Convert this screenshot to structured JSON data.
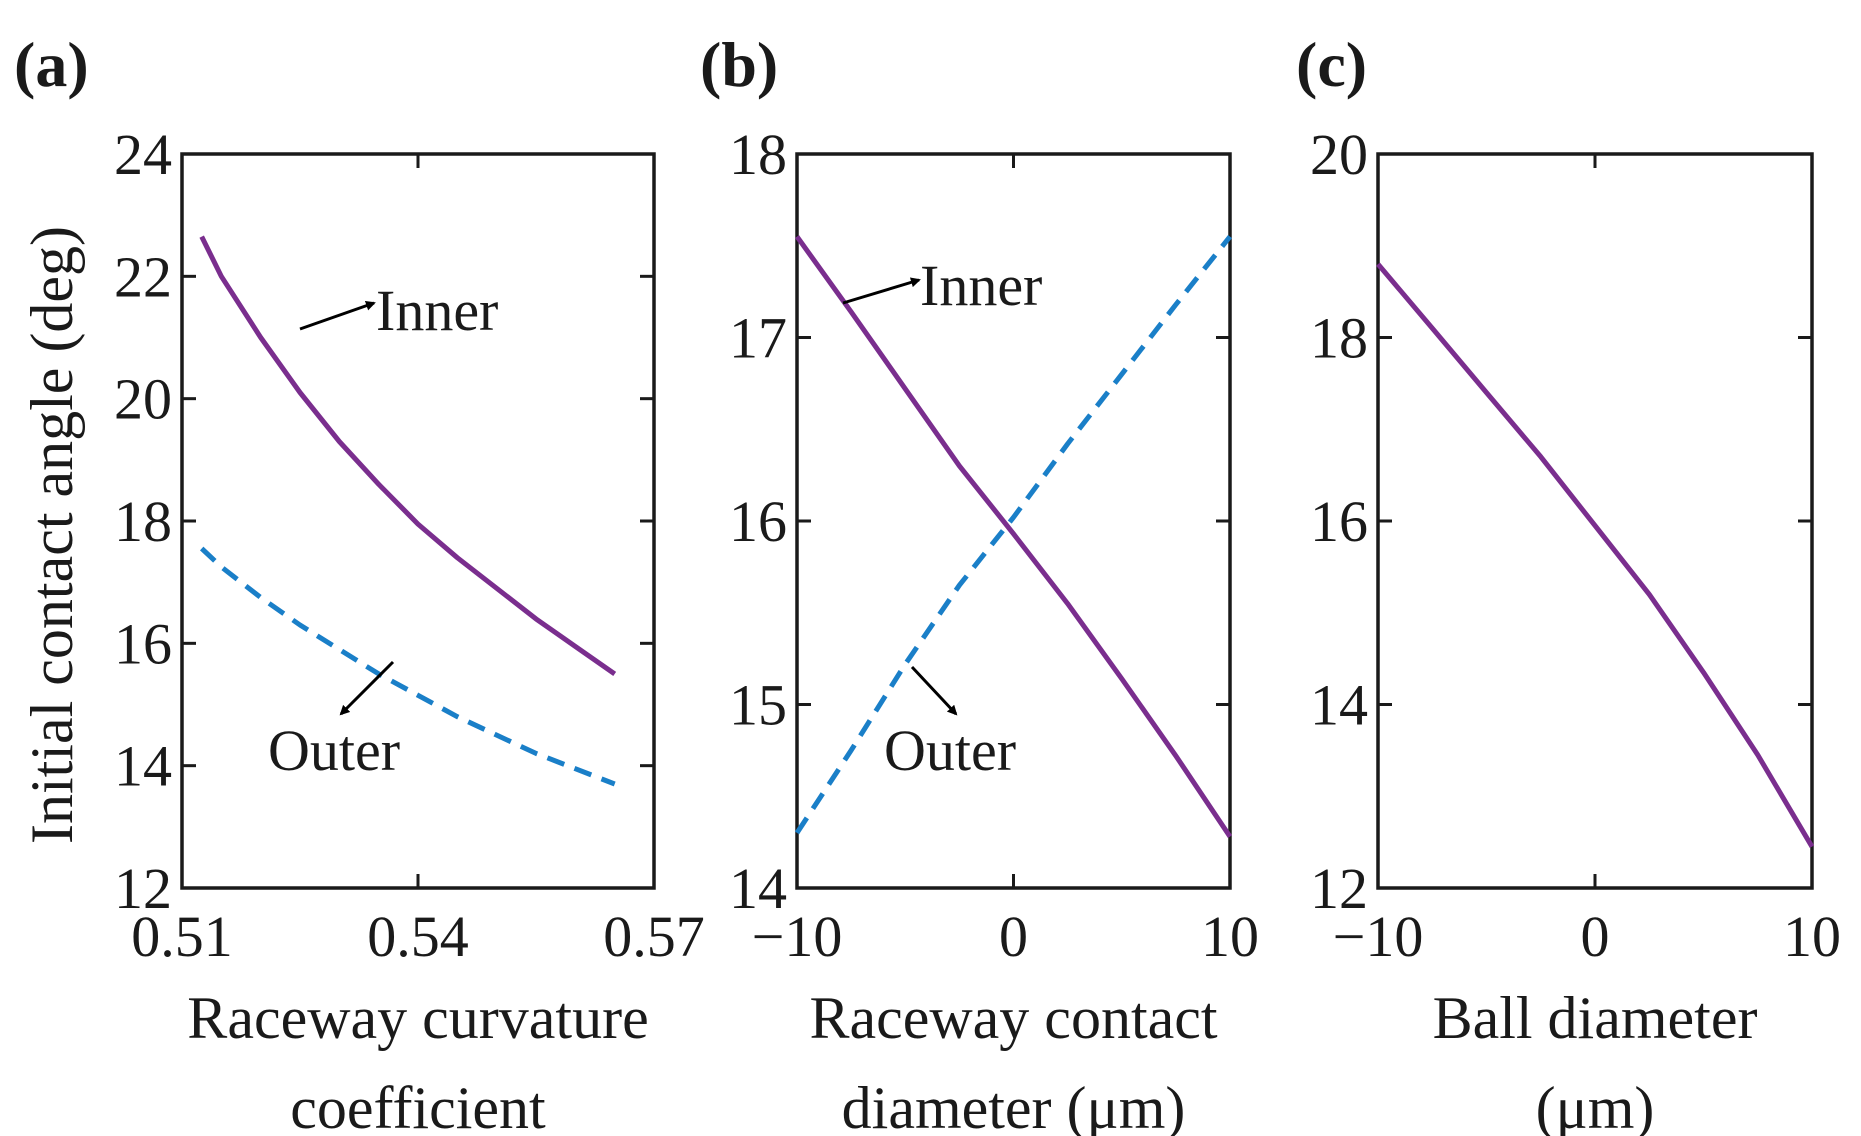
{
  "colors": {
    "inner": "#7a2e8e",
    "outer": "#1a7fc8",
    "axis": "#1a1a1a"
  },
  "ylabel": "Initial contact angle (deg)",
  "chart_data": [
    {
      "type": "line",
      "panel": "(a)",
      "xlabel_lines": [
        "Raceway curvature",
        "coefficient"
      ],
      "xlim": [
        0.51,
        0.57
      ],
      "ylim": [
        12,
        24
      ],
      "xticks": [
        0.51,
        0.54,
        0.57
      ],
      "xtick_labels": [
        "0.51",
        "0.54",
        "0.57"
      ],
      "yticks": [
        12,
        14,
        16,
        18,
        20,
        22,
        24
      ],
      "ytick_labels": [
        "12",
        "14",
        "16",
        "18",
        "20",
        "22",
        "24"
      ],
      "series": [
        {
          "name": "Inner",
          "style": "solid",
          "color_key": "inner",
          "x": [
            0.5125,
            0.515,
            0.52,
            0.525,
            0.53,
            0.535,
            0.54,
            0.545,
            0.55,
            0.555,
            0.56,
            0.565
          ],
          "y": [
            22.65,
            22.0,
            21.0,
            20.1,
            19.3,
            18.6,
            17.95,
            17.4,
            16.9,
            16.4,
            15.95,
            15.5
          ]
        },
        {
          "name": "Outer",
          "style": "dashed",
          "color_key": "outer",
          "x": [
            0.5125,
            0.515,
            0.52,
            0.525,
            0.53,
            0.535,
            0.54,
            0.545,
            0.55,
            0.555,
            0.56,
            0.565
          ],
          "y": [
            17.55,
            17.25,
            16.75,
            16.3,
            15.9,
            15.5,
            15.15,
            14.8,
            14.5,
            14.2,
            13.95,
            13.7
          ]
        }
      ],
      "annotations": [
        {
          "text": "Inner",
          "anchor": "upper-middle",
          "arrow_to": "Inner"
        },
        {
          "text": "Outer",
          "anchor": "lower-left",
          "arrow_to": "Outer"
        }
      ]
    },
    {
      "type": "line",
      "panel": "(b)",
      "xlabel_lines": [
        "Raceway contact",
        "diameter (μm)"
      ],
      "xlim": [
        -10,
        10
      ],
      "ylim": [
        14,
        18
      ],
      "xticks": [
        -10,
        0,
        10
      ],
      "xtick_labels": [
        "−10",
        "0",
        "10"
      ],
      "yticks": [
        14,
        15,
        16,
        17,
        18
      ],
      "ytick_labels": [
        "14",
        "15",
        "16",
        "17",
        "18"
      ],
      "series": [
        {
          "name": "Inner",
          "style": "solid",
          "color_key": "inner",
          "x": [
            -10,
            -7.5,
            -5,
            -2.5,
            0,
            2.5,
            5,
            7.5,
            10
          ],
          "y": [
            17.55,
            17.14,
            16.72,
            16.3,
            15.93,
            15.55,
            15.14,
            14.72,
            14.28
          ]
        },
        {
          "name": "Outer",
          "style": "dashed",
          "color_key": "outer",
          "x": [
            -10,
            -7.5,
            -5,
            -2.5,
            0,
            2.5,
            5,
            7.5,
            10
          ],
          "y": [
            14.3,
            14.75,
            15.22,
            15.65,
            16.02,
            16.42,
            16.8,
            17.18,
            17.55
          ]
        }
      ],
      "annotations": [
        {
          "text": "Inner",
          "anchor": "upper-middle",
          "arrow_to": "Inner"
        },
        {
          "text": "Outer",
          "anchor": "lower-middle",
          "arrow_to": "Outer"
        }
      ]
    },
    {
      "type": "line",
      "panel": "(c)",
      "xlabel_lines": [
        "Ball diameter",
        "(μm)"
      ],
      "xlim": [
        -10,
        10
      ],
      "ylim": [
        12,
        20
      ],
      "xticks": [
        -10,
        0,
        10
      ],
      "xtick_labels": [
        "−10",
        "0",
        "10"
      ],
      "yticks": [
        12,
        14,
        16,
        18,
        20
      ],
      "ytick_labels": [
        "12",
        "14",
        "16",
        "18",
        "20"
      ],
      "series": [
        {
          "name": "Inner",
          "style": "solid",
          "color_key": "inner",
          "x": [
            -10,
            -7.5,
            -5,
            -2.5,
            0,
            2.5,
            5,
            7.5,
            10
          ],
          "y": [
            18.8,
            18.1,
            17.4,
            16.7,
            15.95,
            15.2,
            14.35,
            13.45,
            12.45
          ]
        }
      ],
      "annotations": []
    }
  ]
}
